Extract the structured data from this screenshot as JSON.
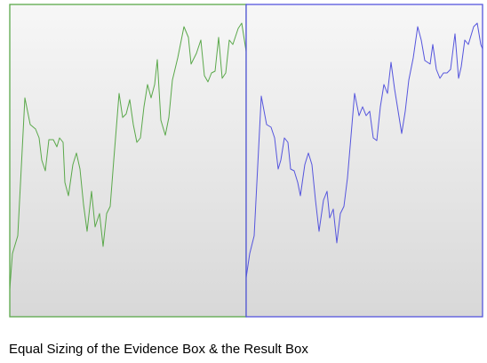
{
  "chart_data": [
    {
      "type": "line",
      "color": "#5aa84a",
      "x": [
        0,
        3,
        9,
        17,
        23,
        29,
        33,
        36,
        40,
        44,
        49,
        53,
        56,
        60,
        62,
        66,
        71,
        75,
        79,
        83,
        87,
        92,
        96,
        101,
        105,
        109,
        113,
        117,
        123,
        127,
        131,
        135,
        139,
        143,
        147,
        151,
        155,
        159,
        163,
        166,
        170,
        175,
        179,
        183,
        189,
        196,
        201,
        204,
        210,
        215,
        219,
        223,
        227,
        231,
        235,
        239,
        243,
        247,
        251,
        257,
        261,
        266
      ],
      "values": [
        31,
        71,
        91,
        246,
        216,
        211,
        201,
        176,
        164,
        199,
        199,
        191,
        201,
        196,
        151,
        136,
        171,
        184,
        166,
        126,
        96,
        141,
        101,
        116,
        79,
        116,
        124,
        176,
        251,
        224,
        228,
        244,
        216,
        196,
        201,
        236,
        261,
        246,
        261,
        289,
        221,
        204,
        224,
        266,
        291,
        326,
        314,
        284,
        296,
        311,
        271,
        264,
        274,
        276,
        314,
        268,
        274,
        311,
        306,
        324,
        330,
        298
      ],
      "xlim": [
        0,
        266
      ],
      "ylim": [
        0,
        351
      ]
    },
    {
      "type": "line",
      "color": "#5555dd",
      "x": [
        0,
        4,
        9,
        17,
        23,
        28,
        32,
        36,
        39,
        43,
        47,
        50,
        54,
        58,
        61,
        66,
        70,
        74,
        78,
        82,
        87,
        91,
        94,
        98,
        102,
        106,
        110,
        114,
        122,
        127,
        131,
        135,
        139,
        143,
        147,
        151,
        155,
        159,
        163,
        167,
        171,
        175,
        179,
        183,
        188,
        193,
        197,
        201,
        207,
        210,
        214,
        218,
        222,
        226,
        230,
        235,
        239,
        242,
        246,
        250,
        256,
        260,
        264,
        266
      ],
      "values": [
        44,
        71,
        91,
        248,
        216,
        213,
        201,
        166,
        176,
        201,
        196,
        166,
        164,
        151,
        136,
        171,
        184,
        171,
        131,
        96,
        131,
        141,
        111,
        121,
        83,
        116,
        124,
        156,
        251,
        226,
        236,
        226,
        231,
        201,
        198,
        236,
        261,
        251,
        286,
        256,
        231,
        206,
        231,
        266,
        291,
        326,
        311,
        288,
        284,
        306,
        278,
        268,
        274,
        274,
        278,
        318,
        268,
        281,
        311,
        306,
        326,
        330,
        306,
        301
      ],
      "xlim": [
        0,
        266
      ],
      "ylim": [
        0,
        351
      ]
    }
  ],
  "caption": "Equal Sizing of the Evidence Box & the Result Box"
}
